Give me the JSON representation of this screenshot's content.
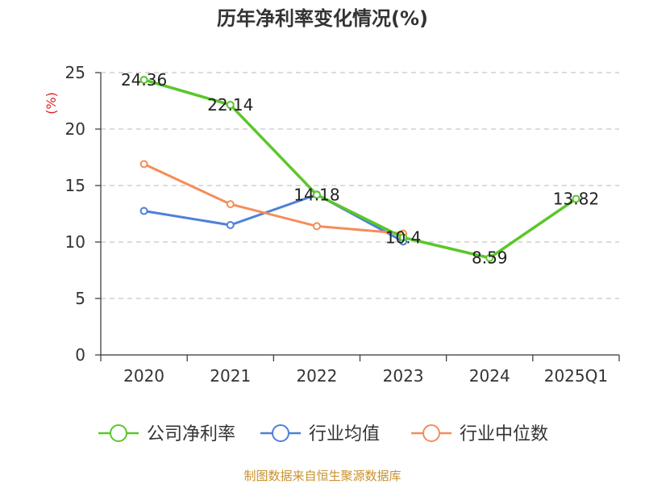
{
  "chart_data": {
    "type": "line",
    "title": "历年净利率变化情况(%)",
    "ylabel": "(%)",
    "xlabel": "",
    "categories": [
      "2020",
      "2021",
      "2022",
      "2023",
      "2024",
      "2025Q1"
    ],
    "ylim": [
      0,
      25
    ],
    "yticks": [
      "0",
      "5",
      "10",
      "15",
      "20",
      "25"
    ],
    "grid": "horizontal dashed",
    "legend_position": "bottom",
    "series": [
      {
        "name": "公司净利率",
        "color": "#5bc72a",
        "values": [
          24.36,
          22.14,
          14.18,
          10.4,
          8.59,
          13.82
        ],
        "labels": [
          "24.36",
          "22.14",
          "14.18",
          "10.4",
          "8.59",
          "13.82"
        ]
      },
      {
        "name": "行业均值",
        "color": "#4e80d9",
        "values": [
          12.75,
          11.5,
          14.2,
          10.05,
          null,
          null
        ]
      },
      {
        "name": "行业中位数",
        "color": "#f58d5a",
        "values": [
          16.9,
          13.35,
          11.4,
          10.75,
          null,
          null
        ]
      }
    ],
    "source": "制图数据来自恒生聚源数据库"
  }
}
